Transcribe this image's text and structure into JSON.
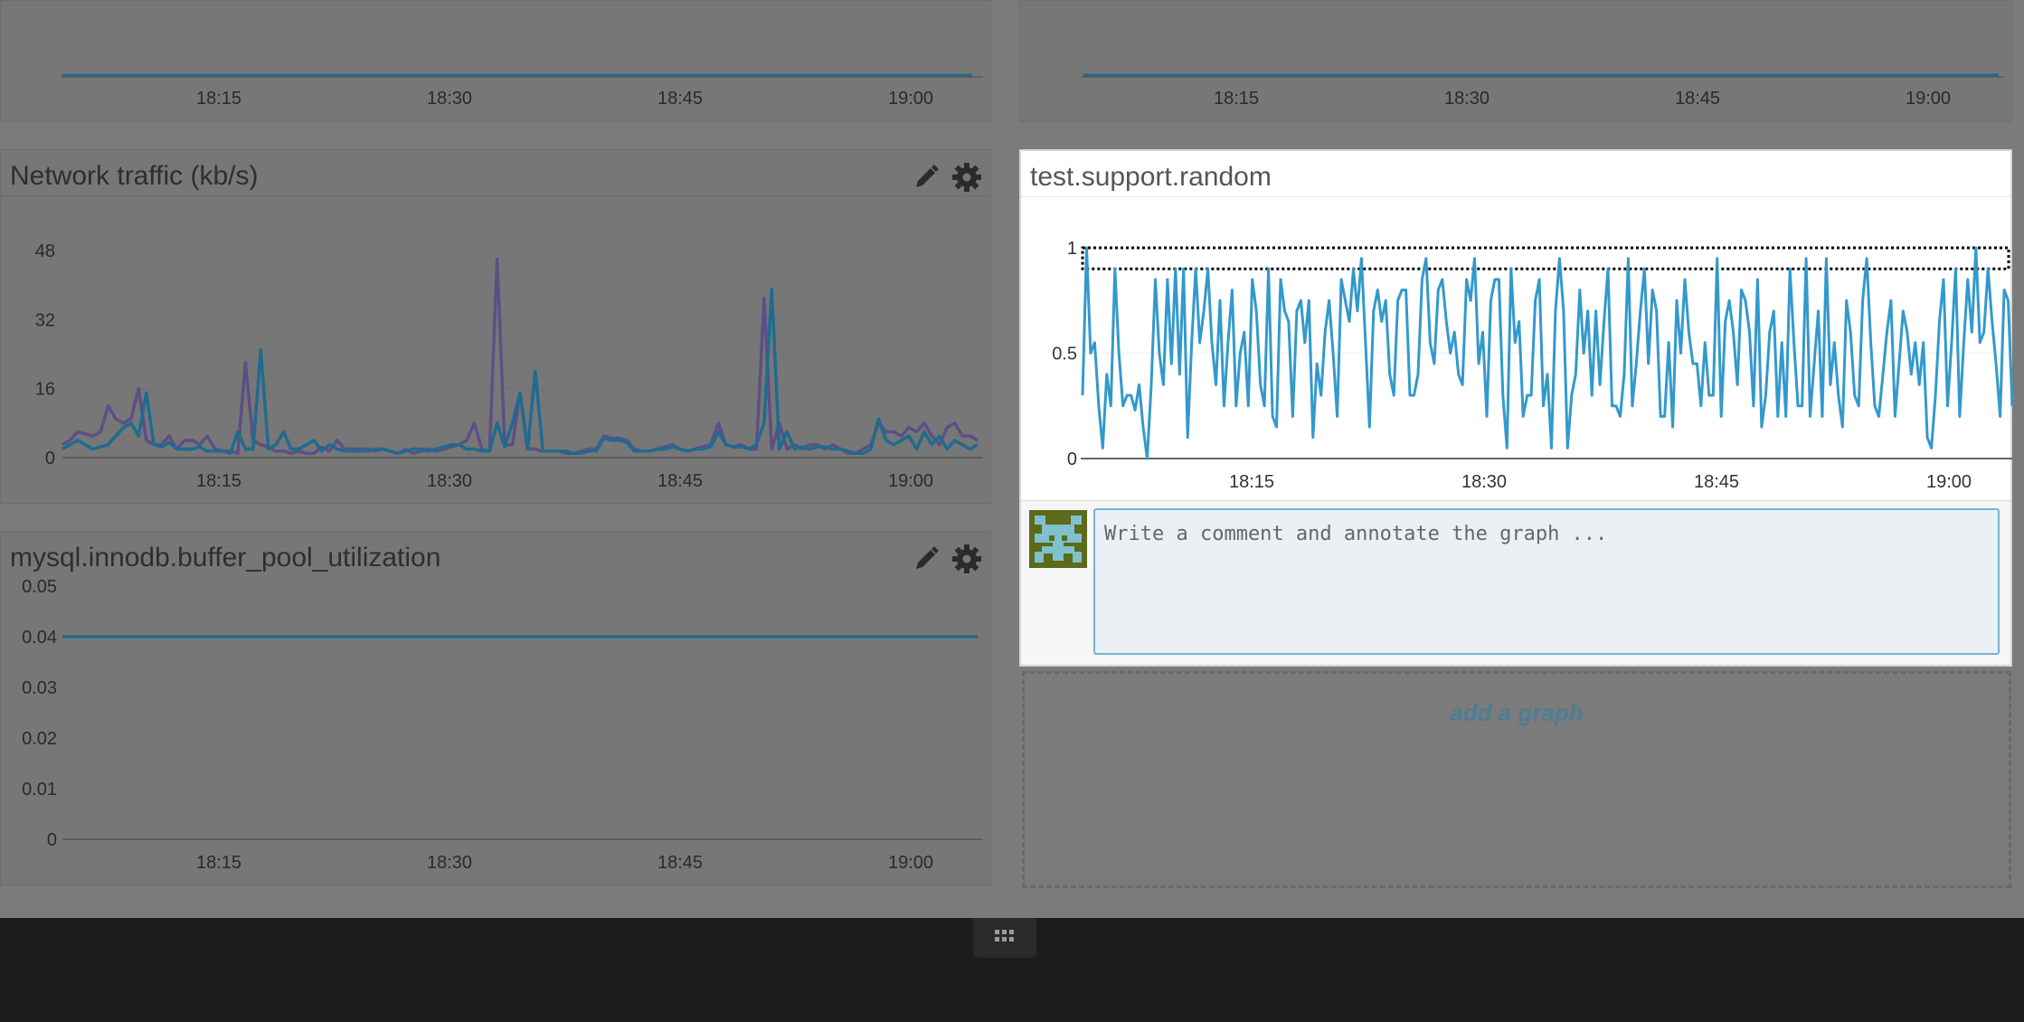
{
  "top_left": {
    "ticks": [
      "18:15",
      "18:30",
      "18:45",
      "19:00"
    ]
  },
  "top_right": {
    "ticks": [
      "18:15",
      "18:30",
      "18:45",
      "19:00"
    ]
  },
  "network": {
    "title": "Network traffic (kb/s)",
    "edit_icon": "pencil-icon",
    "settings_icon": "gear-icon",
    "ytick_labels": [
      "48",
      "32",
      "16",
      "0"
    ],
    "xtick_labels": [
      "18:15",
      "18:30",
      "18:45",
      "19:00"
    ]
  },
  "mysql": {
    "title": "mysql.innodb.buffer_pool_utilization",
    "edit_icon": "pencil-icon",
    "settings_icon": "gear-icon",
    "ytick_labels": [
      "0.05",
      "0.04",
      "0.03",
      "0.02",
      "0.01",
      "0"
    ],
    "xtick_labels": [
      "18:15",
      "18:30",
      "18:45",
      "19:00"
    ]
  },
  "focus": {
    "title": "test.support.random",
    "ytick_labels": [
      "1",
      "0.5",
      "0"
    ],
    "xtick_labels": [
      "18:15",
      "18:30",
      "18:45",
      "19:00"
    ],
    "comment_placeholder": "Write a comment and annotate the graph ..."
  },
  "add_graph_label": "add a graph",
  "grid_icon": "grid-dots-icon",
  "colors": {
    "series_teal": "#1f6b8f",
    "series_purple": "#5d4f85",
    "focus_series": "#3399cc",
    "annotation_color": "#73b3d6"
  },
  "chart_data": [
    {
      "type": "line",
      "title": "Network traffic (kb/s)",
      "ylim": [
        0,
        50
      ],
      "x_tick_labels": [
        "18:15",
        "18:30",
        "18:45",
        "19:00"
      ],
      "y_tick_labels": [
        "0",
        "16",
        "32",
        "48"
      ],
      "series": [
        {
          "values": [
            3,
            4,
            6,
            5.5,
            5,
            6,
            12,
            9,
            8,
            9,
            16,
            4,
            3,
            3,
            5,
            2,
            4,
            4,
            3,
            5,
            2,
            1.5,
            1.5,
            1,
            22,
            4,
            3,
            2.5,
            1.5,
            1.5,
            1,
            1.5,
            1,
            1,
            2.5,
            1.5,
            4,
            2,
            2,
            2,
            2,
            1.5,
            2,
            1.5,
            1,
            2,
            1,
            1.5,
            2,
            1.5,
            2,
            2.5,
            3,
            4,
            8,
            2,
            1.5,
            46,
            3,
            3,
            15,
            2,
            2,
            1.5,
            1.5,
            1.5,
            1,
            1,
            1.5,
            2,
            2,
            5,
            4.5,
            4.5,
            4,
            2,
            1.5,
            1.5,
            2,
            2.5,
            3,
            2,
            1.5,
            2,
            2.5,
            3,
            8,
            3,
            2.5,
            3,
            2,
            2,
            37,
            2,
            8,
            2,
            3,
            2,
            3,
            3,
            2,
            3,
            2,
            1,
            1,
            2,
            3,
            8,
            6,
            6,
            5,
            7,
            6,
            8,
            5,
            3,
            7,
            8,
            5,
            5,
            4
          ]
        },
        {
          "values": [
            2,
            3,
            4,
            3,
            2,
            2.5,
            3,
            5,
            7,
            8,
            5,
            15,
            3,
            2.5,
            3.5,
            2,
            2,
            2,
            2.5,
            1.5,
            1.5,
            1.5,
            1,
            6,
            2,
            2,
            25,
            2,
            3,
            6,
            2,
            2,
            3,
            4,
            1.5,
            3,
            2,
            1.5,
            1.5,
            1.5,
            1.5,
            2,
            2,
            1.5,
            1,
            1.5,
            2,
            2,
            1.5,
            2,
            2.5,
            3,
            3,
            2,
            2,
            1.5,
            1.5,
            8,
            2.5,
            8,
            15,
            2,
            20,
            1.5,
            1.5,
            1.5,
            1.5,
            1,
            1,
            1.5,
            1.5,
            4.5,
            4,
            4,
            3.5,
            1.5,
            1.5,
            1.5,
            2,
            2,
            2.5,
            2,
            1.5,
            2,
            2,
            2.5,
            6,
            3,
            2.5,
            2.5,
            2,
            3,
            8,
            39,
            2,
            6,
            2,
            2.5,
            2,
            2.5,
            2.5,
            2,
            2,
            1.5,
            1,
            1,
            2,
            9,
            4,
            3,
            4,
            5,
            2,
            6,
            3,
            5,
            2,
            4,
            3,
            2,
            3
          ]
        }
      ]
    },
    {
      "type": "line",
      "title": "mysql.innodb.buffer_pool_utilization",
      "ylim": [
        0,
        0.05
      ],
      "x_tick_labels": [
        "18:15",
        "18:30",
        "18:45",
        "19:00"
      ],
      "y_tick_labels": [
        "0",
        "0.01",
        "0.02",
        "0.03",
        "0.04",
        "0.05"
      ],
      "series": [
        {
          "values": [
            0.04,
            0.04
          ]
        }
      ]
    },
    {
      "type": "line",
      "title": "test.support.random",
      "ylim": [
        0,
        1
      ],
      "x_tick_labels": [
        "18:15",
        "18:30",
        "18:45",
        "19:00"
      ],
      "y_tick_labels": [
        "0",
        "0.5",
        "1"
      ],
      "series": [
        {
          "values": [
            0.3,
            1.0,
            0.5,
            0.55,
            0.25,
            0.05,
            0.4,
            0.25,
            0.9,
            0.5,
            0.25,
            0.3,
            0.3,
            0.23,
            0.35,
            0.15,
            0.0,
            0.35,
            0.85,
            0.5,
            0.35,
            0.85,
            0.45,
            0.9,
            0.4,
            0.9,
            0.1,
            0.55,
            0.9,
            0.55,
            0.7,
            0.9,
            0.55,
            0.35,
            0.75,
            0.25,
            0.55,
            0.8,
            0.25,
            0.5,
            0.6,
            0.25,
            0.85,
            0.7,
            0.35,
            0.25,
            0.9,
            0.2,
            0.15,
            0.85,
            0.7,
            0.65,
            0.2,
            0.7,
            0.75,
            0.55,
            0.75,
            0.1,
            0.45,
            0.3,
            0.6,
            0.75,
            0.5,
            0.2,
            0.85,
            0.75,
            0.65,
            0.9,
            0.7,
            0.95,
            0.55,
            0.15,
            0.7,
            0.8,
            0.65,
            0.75,
            0.4,
            0.3,
            0.75,
            0.8,
            0.8,
            0.3,
            0.3,
            0.4,
            0.85,
            0.95,
            0.55,
            0.45,
            0.8,
            0.85,
            0.65,
            0.5,
            0.6,
            0.4,
            0.35,
            0.85,
            0.75,
            0.95,
            0.45,
            0.6,
            0.2,
            0.75,
            0.85,
            0.85,
            0.3,
            0.05,
            0.9,
            0.55,
            0.65,
            0.2,
            0.3,
            0.3,
            0.75,
            0.85,
            0.25,
            0.4,
            0.05,
            0.7,
            0.95,
            0.7,
            0.05,
            0.3,
            0.4,
            0.8,
            0.5,
            0.7,
            0.3,
            0.7,
            0.35,
            0.65,
            0.9,
            0.25,
            0.25,
            0.2,
            0.4,
            0.95,
            0.25,
            0.45,
            0.7,
            0.9,
            0.45,
            0.8,
            0.7,
            0.2,
            0.2,
            0.55,
            0.15,
            0.75,
            0.5,
            0.85,
            0.6,
            0.45,
            0.45,
            0.25,
            0.55,
            0.3,
            0.3,
            0.95,
            0.2,
            0.65,
            0.75,
            0.6,
            0.35,
            0.8,
            0.75,
            0.6,
            0.25,
            0.85,
            0.15,
            0.3,
            0.6,
            0.7,
            0.2,
            0.55,
            0.2,
            0.9,
            0.55,
            0.25,
            0.25,
            0.95,
            0.2,
            0.45,
            0.7,
            0.2,
            0.95,
            0.35,
            0.55,
            0.3,
            0.15,
            0.75,
            0.6,
            0.3,
            0.25,
            0.75,
            0.95,
            0.55,
            0.25,
            0.2,
            0.4,
            0.6,
            0.75,
            0.2,
            0.45,
            0.7,
            0.6,
            0.4,
            0.55,
            0.35,
            0.55,
            0.1,
            0.05,
            0.3,
            0.65,
            0.85,
            0.25,
            0.55,
            0.9,
            0.2,
            0.55,
            0.85,
            0.6,
            1.0,
            0.55,
            0.6,
            0.9,
            0.65,
            0.45,
            0.2,
            0.8,
            0.75,
            0.25
          ]
        }
      ],
      "annotation_band": [
        0.9,
        1.0
      ]
    }
  ]
}
